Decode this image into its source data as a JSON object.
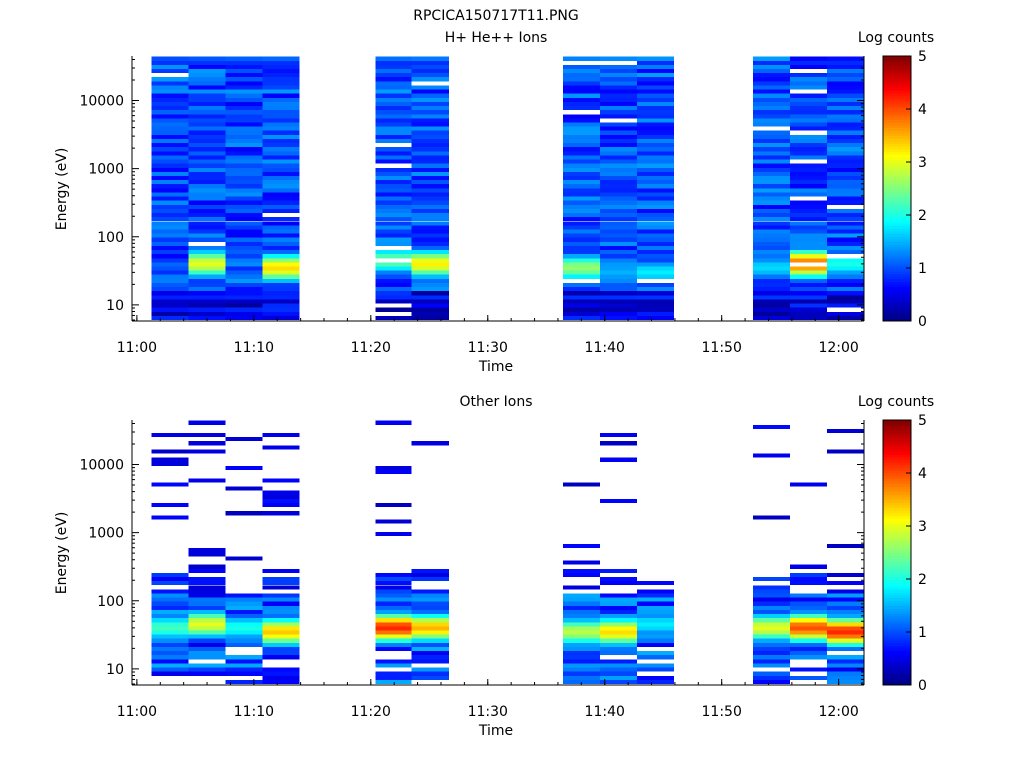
{
  "figure": {
    "file_title": "RPCICA150717T11.PNG"
  },
  "chart_data": [
    {
      "type": "heatmap",
      "title": "H+ He++ Ions",
      "xlabel": "Time",
      "ylabel": "Energy (eV)",
      "colorbar_label": "Log counts",
      "x_ticks": [
        "11:00",
        "11:10",
        "11:20",
        "11:30",
        "11:40",
        "11:50",
        "12:00"
      ],
      "x_range": [
        "10:59:35",
        "12:02:10"
      ],
      "y_scale": "log",
      "y_ticks": [
        10,
        100,
        1000,
        10000
      ],
      "y_tick_labels": [
        "10",
        "100",
        "1000",
        "10000"
      ],
      "y_range": [
        5.8,
        45000
      ],
      "colorbar_ticks": [
        0,
        1,
        2,
        3,
        4,
        5
      ],
      "colorbar_range": [
        0,
        5
      ],
      "colormap": "jet",
      "columns": [
        {
          "start": "11:01:15",
          "end": "11:04:25",
          "low_peak": [
            0,
            0.5
          ],
          "seed": 11
        },
        {
          "start": "11:04:25",
          "end": "11:07:35",
          "low_peak": [
            40,
            3.0
          ],
          "seed": 12
        },
        {
          "start": "11:07:35",
          "end": "11:10:45",
          "low_peak": [
            25,
            1.2
          ],
          "seed": 13
        },
        {
          "start": "11:10:45",
          "end": "11:13:55",
          "low_peak": [
            35,
            3.3
          ],
          "seed": 14
        },
        {
          "start": "11:20:25",
          "end": "11:23:30",
          "low_peak": [
            45,
            2.4
          ],
          "seed": 15
        },
        {
          "start": "11:23:30",
          "end": "11:26:40",
          "low_peak": [
            40,
            3.2
          ],
          "seed": 16
        },
        {
          "start": "11:36:25",
          "end": "11:39:35",
          "low_peak": [
            35,
            2.6
          ],
          "seed": 17
        },
        {
          "start": "11:39:35",
          "end": "11:42:45",
          "low_peak": [
            30,
            1.5
          ],
          "seed": 18
        },
        {
          "start": "11:42:45",
          "end": "11:45:55",
          "low_peak": [
            30,
            1.8
          ],
          "seed": 19
        },
        {
          "start": "11:52:40",
          "end": "11:55:50",
          "low_peak": [
            35,
            1.7
          ],
          "seed": 20
        },
        {
          "start": "11:55:50",
          "end": "11:59:00",
          "low_peak": [
            40,
            3.9
          ],
          "seed": 21
        },
        {
          "start": "11:59:00",
          "end": "12:02:10",
          "low_peak": [
            40,
            2.0
          ],
          "seed": 22
        }
      ]
    },
    {
      "type": "heatmap",
      "title": "Other Ions",
      "xlabel": "Time",
      "ylabel": "Energy (eV)",
      "colorbar_label": "Log counts",
      "x_ticks": [
        "11:00",
        "11:10",
        "11:20",
        "11:30",
        "11:40",
        "11:50",
        "12:00"
      ],
      "x_range": [
        "10:59:35",
        "12:02:10"
      ],
      "y_scale": "log",
      "y_ticks": [
        10,
        100,
        1000,
        10000
      ],
      "y_tick_labels": [
        "10",
        "100",
        "1000",
        "10000"
      ],
      "y_range": [
        5.8,
        45000
      ],
      "colorbar_ticks": [
        0,
        1,
        2,
        3,
        4,
        5
      ],
      "colorbar_range": [
        0,
        5
      ],
      "colormap": "jet",
      "columns": [
        {
          "start": "11:01:15",
          "end": "11:04:25",
          "low_peak": [
            40,
            2.2
          ],
          "seed": 31
        },
        {
          "start": "11:04:25",
          "end": "11:07:35",
          "low_peak": [
            45,
            3.0
          ],
          "seed": 32
        },
        {
          "start": "11:07:35",
          "end": "11:10:45",
          "low_peak": [
            40,
            2.0
          ],
          "seed": 33
        },
        {
          "start": "11:10:45",
          "end": "11:13:55",
          "low_peak": [
            35,
            3.4
          ],
          "seed": 34
        },
        {
          "start": "11:20:25",
          "end": "11:23:30",
          "low_peak": [
            40,
            4.2
          ],
          "seed": 35
        },
        {
          "start": "11:23:30",
          "end": "11:26:40",
          "low_peak": [
            40,
            3.5
          ],
          "seed": 36
        },
        {
          "start": "11:36:25",
          "end": "11:39:35",
          "low_peak": [
            35,
            2.8
          ],
          "seed": 37
        },
        {
          "start": "11:39:35",
          "end": "11:42:45",
          "low_peak": [
            35,
            3.3
          ],
          "seed": 38
        },
        {
          "start": "11:42:45",
          "end": "11:45:55",
          "low_peak": [
            45,
            1.8
          ],
          "seed": 39
        },
        {
          "start": "11:52:40",
          "end": "11:55:50",
          "low_peak": [
            40,
            3.0
          ],
          "seed": 40
        },
        {
          "start": "11:55:50",
          "end": "11:59:00",
          "low_peak": [
            40,
            4.0
          ],
          "seed": 41
        },
        {
          "start": "11:59:00",
          "end": "12:02:10",
          "low_peak": [
            35,
            4.2
          ],
          "seed": 42
        }
      ]
    }
  ]
}
